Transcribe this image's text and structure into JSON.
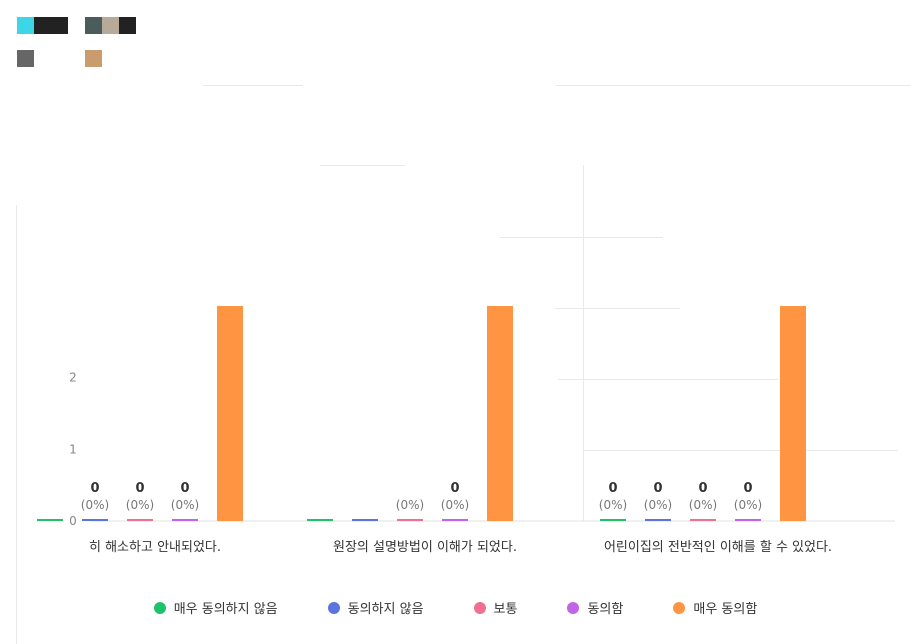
{
  "header_swatches": {
    "row1": [
      "#3dd6e6",
      "#222222",
      "#222222",
      "#ffffff",
      "#4a5c5c",
      "#b7aa99",
      "#222222"
    ],
    "row2": [
      "#666666",
      "#ffffff",
      "#ffffff",
      "#ffffff",
      "#c89c6c"
    ]
  },
  "chart_data": {
    "type": "bar",
    "ylim": [
      0,
      3
    ],
    "yticks": [
      "0",
      "1",
      "2"
    ],
    "categories": [
      "히 해소하고 안내되었다.",
      "원장의 설명방법이 이해가 되었다.",
      "어린이집의 전반적인 이해를 할 수 있었다."
    ],
    "series": [
      {
        "name": "매우 동의하지 않음",
        "color": "#1ec26a",
        "values": [
          0,
          0,
          0
        ],
        "labels": [
          "",
          "",
          "0"
        ],
        "pct": [
          "",
          "",
          "(0%)"
        ]
      },
      {
        "name": "동의하지 않음",
        "color": "#5b74e0",
        "values": [
          0,
          0,
          0
        ],
        "labels": [
          "0",
          "",
          "0"
        ],
        "pct": [
          "(0%)",
          "",
          "(0%)"
        ]
      },
      {
        "name": "보통",
        "color": "#ef7090",
        "values": [
          0,
          0,
          0
        ],
        "labels": [
          "0",
          "",
          "0"
        ],
        "pct": [
          "(0%)",
          "(0%)",
          "(0%)"
        ]
      },
      {
        "name": "동의함",
        "color": "#c065e8",
        "values": [
          0,
          0,
          0
        ],
        "labels": [
          "0",
          "0",
          "0"
        ],
        "pct": [
          "(0%)",
          "(0%)",
          "(0%)"
        ]
      },
      {
        "name": "매우 동의함",
        "color": "#ff9442",
        "values": [
          3,
          3,
          3
        ],
        "labels": [
          "",
          "",
          ""
        ],
        "pct": [
          "",
          "",
          ""
        ]
      }
    ]
  },
  "legend": [
    {
      "label": "매우 동의하지 않음",
      "color": "#1ec26a"
    },
    {
      "label": "동의하지 않음",
      "color": "#5b74e0"
    },
    {
      "label": "보통",
      "color": "#ef7090"
    },
    {
      "label": "동의함",
      "color": "#c065e8"
    },
    {
      "label": "매우 동의함",
      "color": "#ff9442"
    }
  ]
}
